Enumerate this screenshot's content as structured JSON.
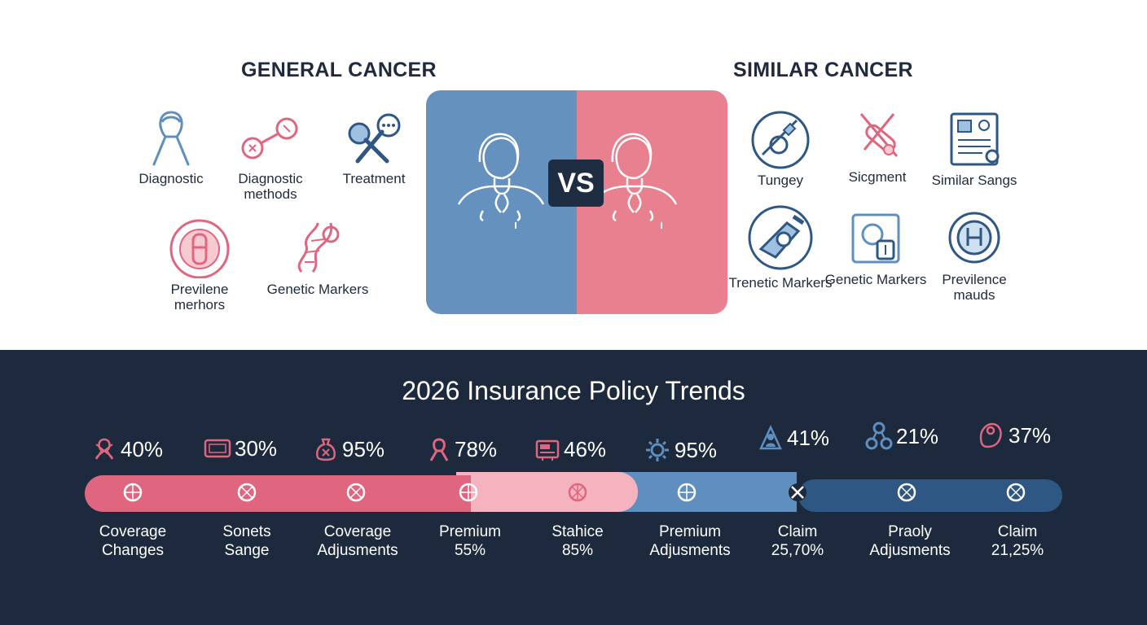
{
  "comparison": {
    "left_heading": "GENERAL CANCER",
    "right_heading": "SIMILAR CANCER",
    "vs_label": "VS",
    "general_items": [
      {
        "label": "Diagnostic",
        "icon": "ribbon-icon"
      },
      {
        "label": "Diagnostic methods",
        "icon": "syringe-icon"
      },
      {
        "label": "Treatment",
        "icon": "tools-icon"
      },
      {
        "label": "Previlene merhors",
        "icon": "scan-icon"
      },
      {
        "label": "Genetic Markers",
        "icon": "dna-icon"
      }
    ],
    "similar_items": [
      {
        "label": "Tungey",
        "icon": "surgery-icon"
      },
      {
        "label": "Sicgment",
        "icon": "pill-icon"
      },
      {
        "label": "Similar Sangs",
        "icon": "clipboard-icon"
      },
      {
        "label": "Trenetic Markers",
        "icon": "microscope-icon"
      },
      {
        "label": "Genetic Markers",
        "icon": "lab-icon"
      },
      {
        "label": "Previlence mauds",
        "icon": "scanner-icon"
      }
    ]
  },
  "trends": {
    "title": "2026 Insurance Policy Trends",
    "stats": [
      {
        "value": "40%",
        "icon": "ribbon-icon"
      },
      {
        "value": "30%",
        "icon": "card-icon"
      },
      {
        "value": "95%",
        "icon": "money-bag-icon"
      },
      {
        "value": "78%",
        "icon": "ribbon-icon"
      },
      {
        "value": "46%",
        "icon": "register-icon"
      },
      {
        "value": "95%",
        "icon": "gear-icon"
      },
      {
        "value": "41%",
        "icon": "person-icon"
      },
      {
        "value": "21%",
        "icon": "network-icon"
      },
      {
        "value": "37%",
        "icon": "bag-icon"
      }
    ],
    "labels": [
      {
        "line1": "Coverage",
        "line2": "Changes"
      },
      {
        "line1": "Sonets",
        "line2": "Sange"
      },
      {
        "line1": "Coverage",
        "line2": "Adjusments"
      },
      {
        "line1": "Premium",
        "line2": "55%"
      },
      {
        "line1": "Stahice",
        "line2": "85%"
      },
      {
        "line1": "Premium",
        "line2": "Adjusments"
      },
      {
        "line1": "Claim",
        "line2": "25,70%"
      },
      {
        "line1": "Praoly",
        "line2": "Adjusments"
      },
      {
        "line1": "Claim",
        "line2": "21,25%"
      }
    ],
    "colors": {
      "pink": "#e0667f",
      "light_pink": "#f4b3bf",
      "blue": "#5f8fbf",
      "navy": "#2f5784",
      "bg": "#1d2a3e"
    }
  }
}
